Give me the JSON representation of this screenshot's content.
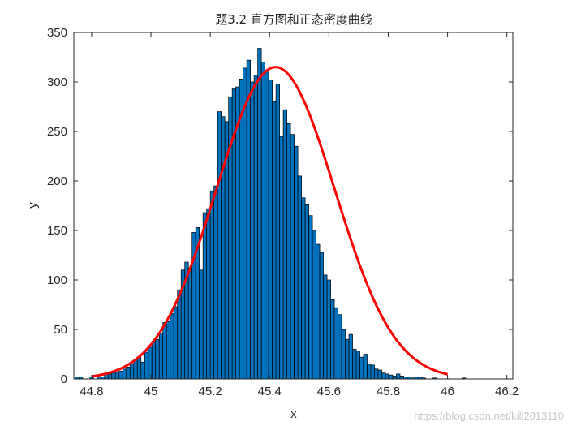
{
  "chart_data": {
    "type": "bar",
    "title": "题3.2 直方图和正态密度曲线",
    "xlabel": "x",
    "ylabel": "y",
    "xlim": [
      44.74,
      46.22
    ],
    "ylim": [
      0,
      350
    ],
    "xticks": [
      44.8,
      45,
      45.2,
      45.4,
      45.6,
      45.8,
      46,
      46.2
    ],
    "xtick_labels": [
      "44.8",
      "45",
      "45.2",
      "45.4",
      "45.6",
      "45.8",
      "46",
      "46.2"
    ],
    "yticks": [
      0,
      50,
      100,
      150,
      200,
      250,
      300,
      350
    ],
    "ytick_labels": [
      "0",
      "50",
      "100",
      "150",
      "200",
      "250",
      "300",
      "350"
    ],
    "bins": {
      "start": 44.745,
      "width": 0.0123,
      "counts": [
        2,
        2,
        0,
        0,
        2,
        0,
        2,
        2,
        5,
        5,
        6,
        7,
        8,
        10,
        12,
        15,
        20,
        22,
        17,
        27,
        32,
        38,
        40,
        46,
        57,
        58,
        66,
        73,
        90,
        110,
        118,
        112,
        148,
        153,
        110,
        168,
        172,
        190,
        195,
        270,
        265,
        260,
        285,
        293,
        295,
        303,
        314,
        322,
        300,
        307,
        334,
        320,
        310,
        302,
        280,
        298,
        245,
        272,
        258,
        247,
        235,
        205,
        183,
        176,
        165,
        150,
        136,
        128,
        105,
        100,
        80,
        72,
        65,
        50,
        40,
        45,
        30,
        28,
        22,
        25,
        15,
        14,
        10,
        9,
        6,
        5,
        4,
        3,
        5,
        3,
        2,
        2,
        1,
        2,
        2,
        1,
        0,
        0,
        1,
        0,
        0,
        0,
        0,
        0,
        0,
        0,
        1
      ],
      "color": "#0072BD",
      "edge_color": "#000000"
    },
    "density_curve": {
      "type": "line",
      "mean": 45.42,
      "std": 0.2,
      "peak": 315,
      "range": [
        44.8,
        46.0
      ],
      "color": "#FF0000"
    },
    "grid": false,
    "legend": null
  },
  "watermark": "https://blog.csdn.net/kill2013110"
}
